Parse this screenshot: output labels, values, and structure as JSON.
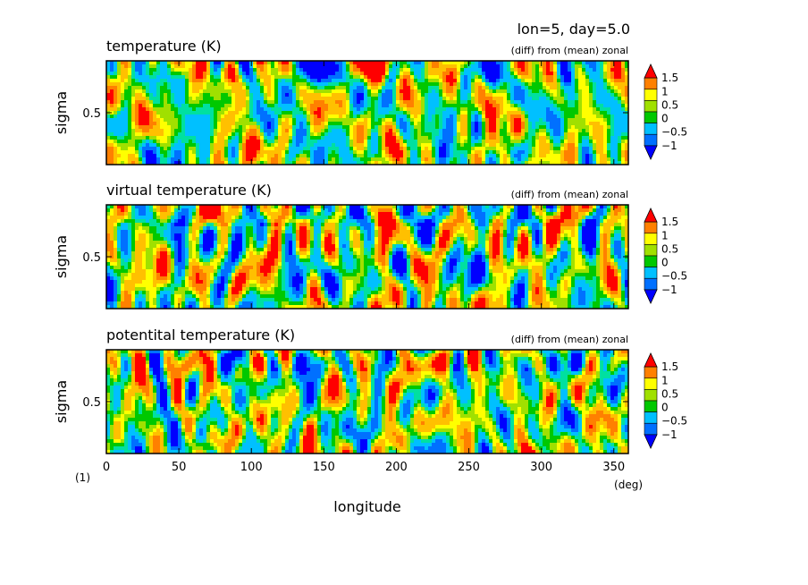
{
  "chart_data": {
    "type": "heatmap",
    "header": "lon=5, day=5.0",
    "x_unit_label": "(deg)",
    "y_unit_label": "(1)",
    "xlabel": "longitude",
    "ylabel": "sigma",
    "xlim": [
      0,
      360
    ],
    "ylim": [
      0,
      1
    ],
    "x_ticks": [
      "0",
      "50",
      "100",
      "150",
      "200",
      "250",
      "300",
      "350"
    ],
    "x_tick_values": [
      0,
      50,
      100,
      150,
      200,
      250,
      300,
      350
    ],
    "y_ticks": [
      "0.5"
    ],
    "y_tick_values": [
      0.5
    ],
    "colorbar": {
      "labels": [
        "1.5",
        "1",
        "0.5",
        "0",
        "−0.5",
        "−1"
      ],
      "levels": [
        1.5,
        1,
        0.5,
        0,
        -0.5,
        -1
      ],
      "colors": [
        "#0000ff",
        "#0070ff",
        "#00c0ff",
        "#00e0a0",
        "#00c800",
        "#a0e000",
        "#ffff00",
        "#ffc000",
        "#ff8000",
        "#ff0000"
      ]
    },
    "panels": [
      {
        "title": "temperature (K)",
        "subtitle": "(diff) from (mean) zonal",
        "seed": 11
      },
      {
        "title": "virtual temperature (K)",
        "subtitle": "(diff) from (mean) zonal",
        "seed": 23
      },
      {
        "title": "potentital temperature (K)",
        "subtitle": "(diff) from (mean) zonal",
        "seed": 37
      }
    ]
  }
}
